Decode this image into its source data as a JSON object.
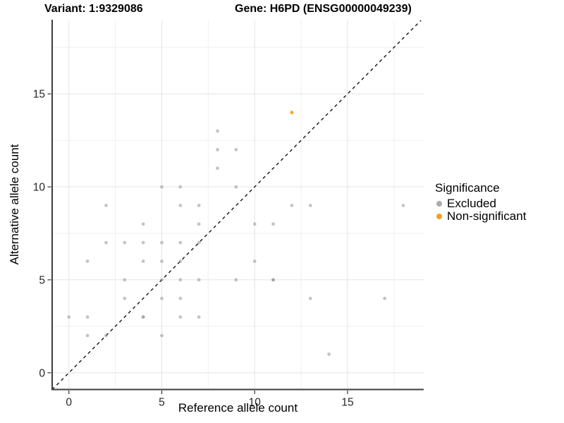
{
  "titles": {
    "left": "Variant: 1:9329086",
    "right": "Gene: H6PD (ENSG00000049239)"
  },
  "chart_data": {
    "type": "scatter",
    "title_left": "Variant: 1:9329086",
    "title_right": "Gene: H6PD (ENSG00000049239)",
    "xlabel": "Reference allele count",
    "ylabel": "Alternative allele count",
    "xlim": [
      -0.9,
      19.1
    ],
    "ylim": [
      -0.9,
      18.95
    ],
    "x_ticks": [
      0,
      5,
      10,
      15
    ],
    "y_ticks": [
      0,
      5,
      10,
      15
    ],
    "x_minor_gridlines": [
      2.5,
      7.5,
      12.5,
      17.5
    ],
    "y_minor_gridlines": [
      2.5,
      7.5,
      12.5,
      17.5
    ],
    "grid": true,
    "identity_line": {
      "style": "dashed",
      "from": -0.9,
      "to": 18.95,
      "color": "#111111"
    },
    "legend": {
      "title": "Significance",
      "position": "right",
      "items": [
        {
          "label": "Excluded",
          "color": "#ababab"
        },
        {
          "label": "Non-significant",
          "color": "#fb9e17"
        }
      ]
    },
    "series": [
      {
        "name": "Excluded",
        "color": "#8a8a8a",
        "opacity": 0.5,
        "points": [
          [
            0,
            3
          ],
          [
            1,
            2
          ],
          [
            1,
            3
          ],
          [
            1,
            6
          ],
          [
            2,
            2
          ],
          [
            2,
            7
          ],
          [
            2,
            9
          ],
          [
            3,
            4
          ],
          [
            3,
            5
          ],
          [
            3,
            7
          ],
          [
            4,
            3
          ],
          [
            4,
            3
          ],
          [
            4,
            6
          ],
          [
            4,
            7
          ],
          [
            4,
            8
          ],
          [
            5,
            2
          ],
          [
            5,
            4
          ],
          [
            5,
            5
          ],
          [
            5,
            6
          ],
          [
            5,
            7
          ],
          [
            5,
            10
          ],
          [
            6,
            3
          ],
          [
            6,
            4
          ],
          [
            6,
            5
          ],
          [
            6,
            6
          ],
          [
            6,
            7
          ],
          [
            6,
            9
          ],
          [
            6,
            10
          ],
          [
            7,
            3
          ],
          [
            7,
            5
          ],
          [
            7,
            7
          ],
          [
            7,
            8
          ],
          [
            7,
            9
          ],
          [
            8,
            11
          ],
          [
            8,
            12
          ],
          [
            8,
            13
          ],
          [
            9,
            5
          ],
          [
            9,
            10
          ],
          [
            9,
            12
          ],
          [
            10,
            6
          ],
          [
            10,
            8
          ],
          [
            11,
            5
          ],
          [
            11,
            5
          ],
          [
            11,
            8
          ],
          [
            12,
            9
          ],
          [
            13,
            4
          ],
          [
            13,
            9
          ],
          [
            14,
            1
          ],
          [
            17,
            4
          ],
          [
            18,
            9
          ]
        ]
      },
      {
        "name": "Non-significant",
        "color": "#f9a11d",
        "opacity": 0.95,
        "points": [
          [
            12,
            14
          ]
        ]
      }
    ]
  }
}
